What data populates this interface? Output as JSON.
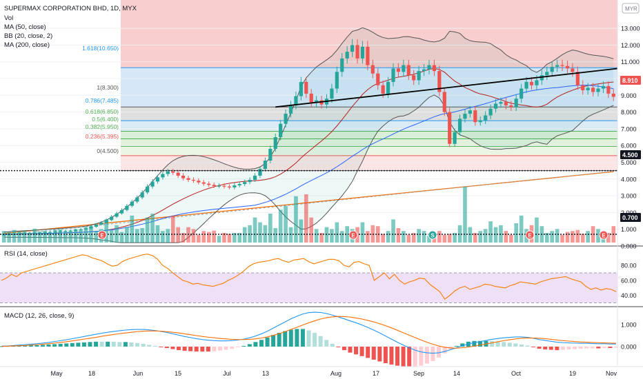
{
  "header": {
    "title": "SUPERMAX CORPORATION BHD, 1D, MYX",
    "currency": "MYR",
    "indicators": [
      "Vol",
      "MA (50, close)",
      "BB (20, close, 2)",
      "MA (200, close)"
    ]
  },
  "rsi_label": "RSI (14, close)",
  "macd_label": "MACD (12, 26, close, 9)",
  "colors": {
    "up": "#26a69a",
    "down": "#ef5350",
    "fib_top": "#f8c9c9",
    "fib_blue": "#cfe3f7",
    "ma50": "#2962ff",
    "ma200": "#ff6d00",
    "bb": "#555555",
    "rsi": "#f57c00",
    "macd": "#2196f3",
    "signal": "#ff6d00"
  },
  "price_labels": [
    {
      "value": "8.910",
      "color": "#ef5350"
    },
    {
      "value": "4.500",
      "color": "#131722"
    },
    {
      "value": "0.700",
      "color": "#131722"
    }
  ],
  "fib_labels": [
    {
      "text": "1.618(10.650)",
      "color": "#2196f3"
    },
    {
      "text": "1(8.300)",
      "color": "#555555"
    },
    {
      "text": "0.786(7.485)",
      "color": "#2196f3"
    },
    {
      "text": "0.618(6.850)",
      "color": "#4caf50"
    },
    {
      "text": "0.5(6.400)",
      "color": "#4caf50"
    },
    {
      "text": "0.382(5.950)",
      "color": "#4caf50"
    },
    {
      "text": "0.236(5.395)",
      "color": "#ef5350"
    },
    {
      "text": "0(4.500)",
      "color": "#555555"
    }
  ],
  "events": [
    "E",
    "E",
    "S",
    "E",
    "E"
  ],
  "chart_data": [
    {
      "type": "candlestick",
      "title": "SUPERMAX CORPORATION BHD, 1D, MYX",
      "x_ticks": [
        "May",
        "18",
        "Jun",
        "15",
        "Jul",
        "13",
        "Aug",
        "17",
        "Sep",
        "14",
        "Oct",
        "19",
        "Nov"
      ],
      "y_ticks": [
        "13.000",
        "12.000",
        "11.000",
        "10.000",
        "9.000",
        "8.000",
        "7.000",
        "6.000",
        "5.000",
        "4.000",
        "3.000",
        "2.000",
        "1.000",
        "0.000"
      ],
      "ylim": [
        0,
        14.5
      ],
      "close_series": [
        0.68,
        0.7,
        0.72,
        0.73,
        0.75,
        0.76,
        0.78,
        0.8,
        0.82,
        0.84,
        0.86,
        0.88,
        0.9,
        0.92,
        0.95,
        1.0,
        1.05,
        1.15,
        1.28,
        1.4,
        1.55,
        1.75,
        1.95,
        2.15,
        2.4,
        2.65,
        2.9,
        3.2,
        3.55,
        3.85,
        4.1,
        4.3,
        4.45,
        4.38,
        4.2,
        4.05,
        3.95,
        3.9,
        3.8,
        3.72,
        3.65,
        3.58,
        3.6,
        3.55,
        3.5,
        3.62,
        3.7,
        3.82,
        3.95,
        4.2,
        4.6,
        5.1,
        5.8,
        6.5,
        7.3,
        7.9,
        8.4,
        8.95,
        9.8,
        9.1,
        8.55,
        8.7,
        8.45,
        8.8,
        9.4,
        10.4,
        11.2,
        11.6,
        12.0,
        11.2,
        11.9,
        10.8,
        10.3,
        9.6,
        9.1,
        9.8,
        10.6,
        10.4,
        10.8,
        10.2,
        9.9,
        10.45,
        10.55,
        10.8,
        10.45,
        9.2,
        8.0,
        6.1,
        6.8,
        7.6,
        7.9,
        8.1,
        7.4,
        7.5,
        7.8,
        8.2,
        8.5,
        8.6,
        8.4,
        8.3,
        8.8,
        9.4,
        9.8,
        9.6,
        9.9,
        10.2,
        10.4,
        10.7,
        10.8,
        10.75,
        10.6,
        10.4,
        9.6,
        9.3,
        9.45,
        9.2,
        9.4,
        9.55,
        9.1,
        8.91
      ],
      "lines": [
        {
          "name": "1.618(10.650)",
          "value": 10.65
        },
        {
          "name": "1(8.300)",
          "value": 8.3
        },
        {
          "name": "0.786(7.485)",
          "value": 7.485
        },
        {
          "name": "0.618(6.850)",
          "value": 6.85
        },
        {
          "name": "0.5(6.400)",
          "value": 6.4
        },
        {
          "name": "0.382(5.950)",
          "value": 5.95
        },
        {
          "name": "0.236(5.395)",
          "value": 5.395
        },
        {
          "name": "0(4.500)",
          "value": 4.5
        }
      ],
      "levels": [
        4.5,
        0.7
      ],
      "last_price": 8.91
    },
    {
      "type": "bar",
      "title": "Vol",
      "values": [
        0.6,
        0.55,
        0.65,
        0.58,
        0.62,
        0.5,
        0.72,
        0.55,
        0.6,
        0.5,
        0.66,
        0.68,
        0.55,
        0.58,
        0.7,
        0.64,
        0.8,
        0.85,
        0.6,
        0.7,
        1.2,
        0.65,
        0.9,
        0.55,
        0.8,
        1.4,
        0.7,
        0.75,
        1.3,
        1.5,
        0.9,
        0.6,
        0.7,
        1.4,
        0.8,
        0.5,
        0.8,
        0.7,
        0.4,
        0.6,
        0.55,
        0.62,
        0.35,
        0.5,
        0.45,
        0.5,
        0.5,
        0.8,
        0.9,
        1.3,
        1.05,
        0.9,
        1.5,
        0.75,
        1.7,
        1.9,
        0.8,
        2.4,
        1.2,
        2.5,
        1.3,
        0.7,
        0.5,
        0.8,
        0.7,
        1.05,
        0.6,
        0.85,
        0.7,
        0.8,
        1.05,
        0.6,
        0.9,
        0.85,
        0.45,
        0.6,
        1.2,
        0.75,
        0.6,
        0.4,
        0.5,
        0.7,
        0.6,
        0.35,
        0.5,
        0.6,
        0.4,
        0.45,
        0.5,
        0.9,
        2.9,
        0.8,
        0.5,
        0.6,
        0.7,
        1.1,
        0.8,
        0.9,
        0.6,
        0.4,
        1.0,
        1.4,
        0.7,
        0.9,
        1.3,
        0.85,
        0.5,
        0.6,
        0.7,
        0.4,
        0.55,
        0.6,
        0.65,
        0.45,
        0.6,
        0.85,
        0.7,
        0.55,
        0.5,
        0.85,
        0.75,
        0.6,
        0.55,
        0.45
      ],
      "ylim": [
        0,
        3.3
      ]
    },
    {
      "type": "line",
      "title": "RSI (14, close)",
      "y_ticks": [
        "80.00",
        "60.00",
        "40.00"
      ],
      "ylim": [
        30,
        100
      ],
      "values": [
        60,
        63,
        68,
        65,
        70,
        72,
        74,
        76,
        78,
        80,
        82,
        84,
        86,
        88,
        90,
        92,
        94,
        93,
        90,
        88,
        86,
        82,
        79,
        80,
        85,
        88,
        90,
        92,
        94,
        95,
        93,
        88,
        80,
        76,
        70,
        65,
        60,
        58,
        55,
        56,
        54,
        53,
        52,
        54,
        56,
        60,
        63,
        67,
        72,
        78,
        82,
        84,
        85,
        86,
        88,
        89,
        86,
        84,
        87,
        88,
        89,
        85,
        82,
        84,
        86,
        88,
        88,
        86,
        80,
        78,
        84,
        85,
        82,
        80,
        60,
        65,
        70,
        62,
        68,
        60,
        55,
        58,
        60,
        63,
        62,
        55,
        50,
        45,
        35,
        40,
        46,
        50,
        52,
        48,
        50,
        52,
        55,
        54,
        52,
        51,
        50,
        53,
        55,
        58,
        57,
        56,
        55,
        58,
        60,
        62,
        63,
        64,
        65,
        62,
        60,
        58,
        52,
        48,
        50,
        47,
        49,
        48,
        45
      ]
    },
    {
      "type": "line",
      "title": "MACD (12, 26, close, 9)",
      "y_ticks": [
        "1.000",
        "0.000"
      ],
      "ylim": [
        -0.55,
        1.65
      ],
      "series": [
        {
          "values": [
            0.02,
            0.03,
            0.05,
            0.07,
            0.09,
            0.11,
            0.13,
            0.16,
            0.19,
            0.23,
            0.27,
            0.31,
            0.36,
            0.41,
            0.46,
            0.51,
            0.56,
            0.61,
            0.65,
            0.69,
            0.72,
            0.75,
            0.77,
            0.78,
            0.78,
            0.76,
            0.73,
            0.69,
            0.64,
            0.58,
            0.52,
            0.46,
            0.41,
            0.36,
            0.32,
            0.29,
            0.27,
            0.26,
            0.26,
            0.27,
            0.3,
            0.34,
            0.4,
            0.48,
            0.58,
            0.7,
            0.84,
            0.98,
            1.12,
            1.26,
            1.38,
            1.48,
            1.54,
            1.56,
            1.55,
            1.5,
            1.43,
            1.35,
            1.26,
            1.17,
            1.08,
            0.98,
            0.87,
            0.75,
            0.62,
            0.48,
            0.34,
            0.2,
            0.07,
            -0.05,
            -0.16,
            -0.24,
            -0.28,
            -0.3,
            -0.28,
            -0.22,
            -0.14,
            -0.05,
            0.04,
            0.12,
            0.18,
            0.23,
            0.28,
            0.33,
            0.37,
            0.4,
            0.42,
            0.44,
            0.44,
            0.42,
            0.38,
            0.32,
            0.28,
            0.24,
            0.2,
            0.18,
            0.17,
            0.16,
            0.15,
            0.15,
            0.14,
            0.13,
            0.13,
            0.12,
            0.12
          ]
        },
        {
          "values": [
            0.01,
            0.02,
            0.03,
            0.04,
            0.05,
            0.07,
            0.09,
            0.11,
            0.13,
            0.16,
            0.19,
            0.22,
            0.26,
            0.3,
            0.34,
            0.38,
            0.42,
            0.47,
            0.51,
            0.55,
            0.59,
            0.62,
            0.65,
            0.68,
            0.7,
            0.71,
            0.71,
            0.7,
            0.68,
            0.65,
            0.62,
            0.58,
            0.54,
            0.5,
            0.46,
            0.43,
            0.4,
            0.37,
            0.35,
            0.33,
            0.32,
            0.32,
            0.33,
            0.35,
            0.39,
            0.44,
            0.51,
            0.59,
            0.68,
            0.78,
            0.88,
            0.98,
            1.08,
            1.17,
            1.25,
            1.31,
            1.35,
            1.37,
            1.36,
            1.34,
            1.3,
            1.25,
            1.19,
            1.12,
            1.04,
            0.95,
            0.85,
            0.74,
            0.63,
            0.52,
            0.41,
            0.3,
            0.2,
            0.11,
            0.03,
            -0.03,
            -0.06,
            -0.07,
            -0.05,
            -0.02,
            0.02,
            0.07,
            0.12,
            0.17,
            0.22,
            0.27,
            0.31,
            0.35,
            0.38,
            0.39,
            0.39,
            0.38,
            0.36,
            0.33,
            0.3,
            0.27,
            0.25,
            0.23,
            0.21,
            0.2,
            0.19,
            0.18,
            0.17,
            0.16,
            0.15
          ]
        }
      ]
    }
  ]
}
